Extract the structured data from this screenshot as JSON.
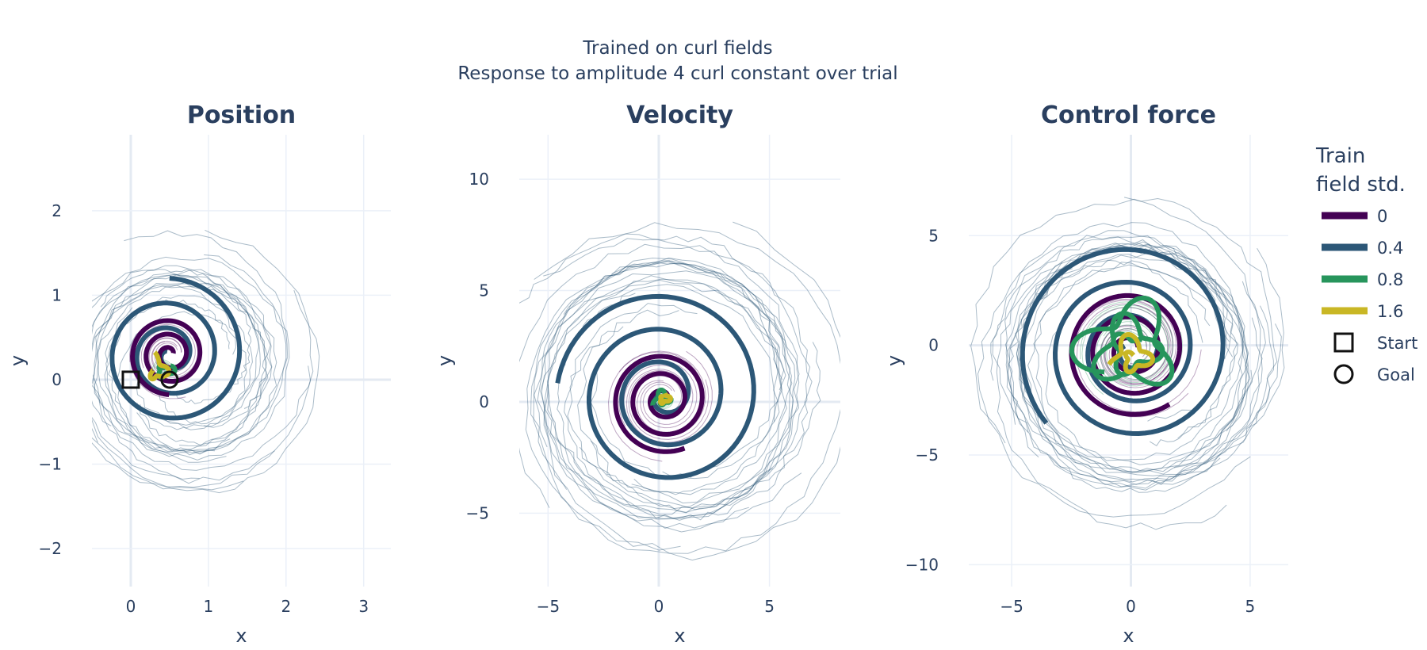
{
  "figure": {
    "title_line1": "Trained on curl fields",
    "title_line2": "Response to amplitude 4 curl constant over trial"
  },
  "legend": {
    "title_line1": "Train",
    "title_line2": "field std.",
    "location": "right",
    "items": [
      {
        "label": "0",
        "color": "#440154",
        "kind": "line"
      },
      {
        "label": "0.4",
        "color": "#2c5777",
        "kind": "line"
      },
      {
        "label": "0.8",
        "color": "#27955c",
        "kind": "line"
      },
      {
        "label": "1.6",
        "color": "#c9b725",
        "kind": "line"
      },
      {
        "label": "Start",
        "color": "#111111",
        "kind": "square"
      },
      {
        "label": "Goal",
        "color": "#111111",
        "kind": "circle"
      }
    ]
  },
  "chart_data": [
    {
      "type": "line",
      "title": "Position",
      "xlabel": "x",
      "ylabel": "y",
      "xlim": [
        -0.5,
        3.35
      ],
      "ylim": [
        -2.45,
        2.9
      ],
      "xticks": [
        0,
        1,
        2,
        3
      ],
      "yticks": [
        -2,
        -1,
        0,
        1,
        2
      ],
      "grid": true,
      "markers": {
        "start": [
          0,
          0
        ],
        "goal": [
          0.5,
          0
        ]
      },
      "series": [
        {
          "name": "0",
          "color": "#440154",
          "center": [
            0.5,
            0.3
          ],
          "r_start": 0.05,
          "r_end": 0.52,
          "turns": 2.7,
          "phase": 0.3
        },
        {
          "name": "0.4",
          "color": "#2c5777",
          "center": [
            0.5,
            0.3
          ],
          "r_start": 0.05,
          "r_end": 0.98,
          "turns": 2.9,
          "phase": 2.2
        },
        {
          "name": "0.8",
          "color": "#27955c",
          "center": [
            0.42,
            0.12
          ],
          "r_start": 0.02,
          "r_end": 0.12,
          "turns": 1.0,
          "phase": 0.5
        },
        {
          "name": "1.6",
          "color": "#c9b725",
          "center": [
            0.3,
            0.1
          ],
          "r_start": 0.02,
          "r_end": 0.2,
          "turns": 0.8,
          "phase": 2.8
        }
      ],
      "noisy_trials": {
        "color": "#2c5777",
        "count": 14,
        "r_min": 0.45,
        "r_max": 1.75,
        "center": [
          0.7,
          0.15
        ]
      }
    },
    {
      "type": "line",
      "title": "Velocity",
      "xlabel": "x",
      "ylabel": "y",
      "xlim": [
        -6.3,
        8.2
      ],
      "ylim": [
        -8.3,
        12.0
      ],
      "xticks": [
        -5,
        0,
        5
      ],
      "yticks": [
        -5,
        0,
        5,
        10
      ],
      "grid": true,
      "series": [
        {
          "name": "0",
          "color": "#440154",
          "center": [
            0.2,
            0.1
          ],
          "r_start": 0.2,
          "r_end": 2.4,
          "turns": 2.8,
          "phase": 0.1
        },
        {
          "name": "0.4",
          "color": "#2c5777",
          "center": [
            0.2,
            0.3
          ],
          "r_start": 0.2,
          "r_end": 4.8,
          "turns": 3.1,
          "phase": 2.4
        },
        {
          "name": "0.8",
          "color": "#27955c",
          "center": [
            0.2,
            0.1
          ],
          "r_start": 0.05,
          "r_end": 0.4,
          "turns": 1.5,
          "phase": 0.5
        },
        {
          "name": "1.6",
          "color": "#c9b725",
          "center": [
            0.2,
            0.15
          ],
          "r_start": 0.05,
          "r_end": 0.3,
          "turns": 1.0,
          "phase": 1.2
        }
      ],
      "noisy_trials": {
        "color": "#2c5777",
        "count": 14,
        "r_min": 2.5,
        "r_max": 8.5,
        "center": [
          0.5,
          0.5
        ]
      }
    },
    {
      "type": "line",
      "title": "Control force",
      "xlabel": "x",
      "ylabel": "y",
      "xlim": [
        -6.8,
        6.6
      ],
      "ylim": [
        -11.0,
        9.6
      ],
      "xticks": [
        -5,
        0,
        5
      ],
      "yticks": [
        -10,
        -5,
        0,
        5
      ],
      "grid": true,
      "series": [
        {
          "name": "0",
          "color": "#440154",
          "center": [
            0,
            -0.2
          ],
          "r_start": 0.3,
          "r_end": 2.8,
          "turns": 2.8,
          "phase": 0.3
        },
        {
          "name": "0.4",
          "color": "#2c5777",
          "center": [
            0,
            -0.2
          ],
          "r_start": 0.3,
          "r_end": 4.7,
          "turns": 3.2,
          "phase": 2.6
        },
        {
          "name": "0.8",
          "color": "#27955c",
          "center": [
            0,
            -0.2
          ],
          "r_start": 0.5,
          "r_end": 1.9,
          "turns": 2.5,
          "phase": 0.7
        },
        {
          "name": "1.6",
          "color": "#c9b725",
          "center": [
            0.1,
            -0.6
          ],
          "r_start": 0.2,
          "r_end": 0.9,
          "turns": 1.3,
          "phase": 1.5
        }
      ],
      "noisy_trials": {
        "color": "#2c5777",
        "count": 16,
        "r_min": 3.0,
        "r_max": 7.2,
        "center": [
          0,
          -0.5
        ]
      }
    }
  ]
}
